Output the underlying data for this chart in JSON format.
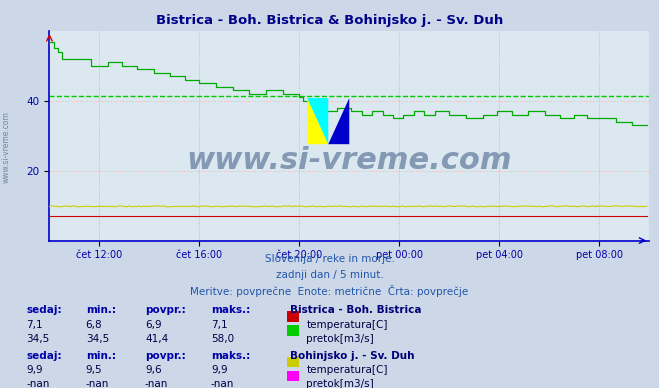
{
  "title": "Bistrica - Boh. Bistrica & Bohinjsko j. - Sv. Duh",
  "bg_color": "#ccd8e8",
  "plot_bg_color": "#dce8f0",
  "title_color": "#000088",
  "axis_color": "#0000cc",
  "xlabel_color": "#0000aa",
  "ylabel_color": "#0000aa",
  "watermark_text": "www.si-vreme.com",
  "watermark_color": "#1a3a6a",
  "watermark_alpha": 0.45,
  "subtitle1": "Slovenija / reke in morje.",
  "subtitle2": "zadnji dan / 5 minut.",
  "subtitle3": "Meritve: povprečne  Enote: metrične  Črta: povprečje",
  "subtitle_color": "#2255aa",
  "xlim": [
    0,
    288
  ],
  "ylim": [
    0,
    60
  ],
  "yticks": [
    20,
    40
  ],
  "xtick_labels": [
    "čet 12:00",
    "čet 16:00",
    "čet 20:00",
    "pet 00:00",
    "pet 04:00",
    "pet 08:00"
  ],
  "xtick_positions": [
    24,
    72,
    120,
    168,
    216,
    264
  ],
  "avg_line_value": 41.4,
  "avg_line_color": "#00cc00",
  "station1_label": "Bistrica - Boh. Bistrica",
  "station2_label": "Bohinjsko j. - Sv. Duh",
  "temp1_color": "#cc0000",
  "flow1_color": "#00aa00",
  "temp2_color": "#cccc00",
  "flow2_color": "#ff00ff",
  "table1_headers": [
    "sedaj:",
    "min.:",
    "povpr.:",
    "maks.:"
  ],
  "table1_row1": [
    "7,1",
    "6,8",
    "6,9",
    "7,1"
  ],
  "table1_row2": [
    "34,5",
    "34,5",
    "41,4",
    "58,0"
  ],
  "table2_headers": [
    "sedaj:",
    "min.:",
    "povpr.:",
    "maks.:"
  ],
  "table2_row1": [
    "9,9",
    "9,5",
    "9,6",
    "9,9"
  ],
  "table2_row2": [
    "-nan",
    "-nan",
    "-nan",
    "-nan"
  ],
  "legend1_temp_color": "#cc0000",
  "legend1_flow_color": "#00cc00",
  "legend2_temp_color": "#cccc00",
  "legend2_flow_color": "#ff00ff"
}
